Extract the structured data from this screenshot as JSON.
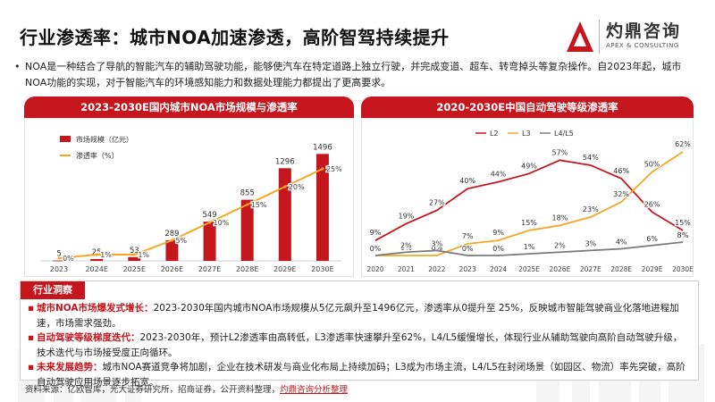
{
  "header": {
    "title": "行业渗透率：城市NOA加速渗透，高阶智驾持续提升",
    "logo_name": "灼鼎咨询",
    "logo_sub": "APEX & CONSULTING",
    "accent_color": "#c5161d"
  },
  "intro": {
    "bullet": "•",
    "text": "NOA是一种结合了导航的智能汽车的辅助驾驶功能，能够使汽车在特定道路上独立行驶，并完成变道、超车、转弯掉头等复杂操作。自2023年起，城市NOA功能的实现，对于智能汽车的环境感知能力和数据处理能力都提出了更高要求。"
  },
  "chart_data": [
    {
      "type": "bar",
      "title": "2023-2030E国内城市NOA市场规模与渗透率",
      "categories": [
        "2023",
        "2024E",
        "2025E",
        "2026E",
        "2027E",
        "2028E",
        "2029E",
        "2030E"
      ],
      "series": [
        {
          "name": "市场规模（亿元）",
          "type": "bar",
          "color": "#c5161d",
          "values": [
            5,
            25,
            53,
            289,
            549,
            855,
            1296,
            1496
          ],
          "labels": [
            "5",
            "25",
            "53",
            "289",
            "549",
            "855",
            "1296",
            "1496"
          ]
        },
        {
          "name": "渗透率（%）",
          "type": "line",
          "color": "#f5a623",
          "values": [
            0,
            1,
            1,
            5,
            10,
            15,
            20,
            25
          ],
          "labels": [
            "0%",
            "1%",
            "1%",
            "5%",
            "10%",
            "15%",
            "20%",
            "25%"
          ]
        }
      ],
      "legend": "top-left",
      "grid": false
    },
    {
      "type": "line",
      "title": "2020-2030E中国自动驾驶等级渗透率",
      "categories": [
        "2020",
        "2021",
        "2022",
        "2023",
        "2024",
        "2025E",
        "2026E",
        "2027E",
        "2028E",
        "2029E",
        "2030E"
      ],
      "series": [
        {
          "name": "L2",
          "color": "#c5161d",
          "values": [
            9,
            19,
            27,
            40,
            44,
            49,
            57,
            54,
            46,
            26,
            15
          ],
          "labels": [
            "9%",
            "19%",
            "27%",
            "40%",
            "44%",
            "49%",
            "57%",
            "54%",
            "46%",
            "26%",
            "15%"
          ]
        },
        {
          "name": "L3",
          "color": "#f5a623",
          "values": [
            0,
            0,
            0,
            7,
            9,
            15,
            18,
            23,
            32,
            50,
            62
          ],
          "labels": [
            "0%",
            "0%",
            "0%",
            "7%",
            "9%",
            "15%",
            "18%",
            "23%",
            "32%",
            "50%",
            "62%"
          ]
        },
        {
          "name": "L4/L5",
          "color": "#7a7a7a",
          "values": [
            0,
            2,
            3,
            0,
            0,
            1,
            2,
            3,
            4,
            6,
            8
          ],
          "labels": [
            "0%",
            "2%",
            "3%",
            "0%",
            "0%",
            "1%",
            "2%",
            "3%",
            "4%",
            "6%",
            "8%"
          ]
        }
      ],
      "legend": "top-left",
      "grid": false
    }
  ],
  "insight": {
    "tag": "行业洞察",
    "items": [
      {
        "label": "城市NOA市场爆发式增长：",
        "text": "2023-2030年国内城市NOA市场规模从5亿元飙升至1496亿元，渗透率从0提升至 25%，反映城市智能驾驶商业化落地进程加速，市场需求强劲。"
      },
      {
        "label": "自动驾驶等级梯度迭代：",
        "text": "2023-2030年，预计L2渗透率由高转低，L3渗透率快速攀升至62%，L4/L5缓慢增长，体现行业从辅助驾驶向高阶自动驾驶升级，技术迭代与市场接受度正向循环。"
      },
      {
        "label": "未来发展趋势：",
        "text": "城市NOA赛道竞争将加剧，企业在技术研发与商业化布局上持续加码；L3成为市场主流，L4/L5在封闭场景（如园区、物流）率先突破，高阶自动驾驶应用场景逐步拓宽。"
      }
    ]
  },
  "source": {
    "prefix": "资料来源：亿欧智库，光大证券研究所，招商证券，公开资料整理，",
    "link": "灼鼎咨询分析整理"
  }
}
